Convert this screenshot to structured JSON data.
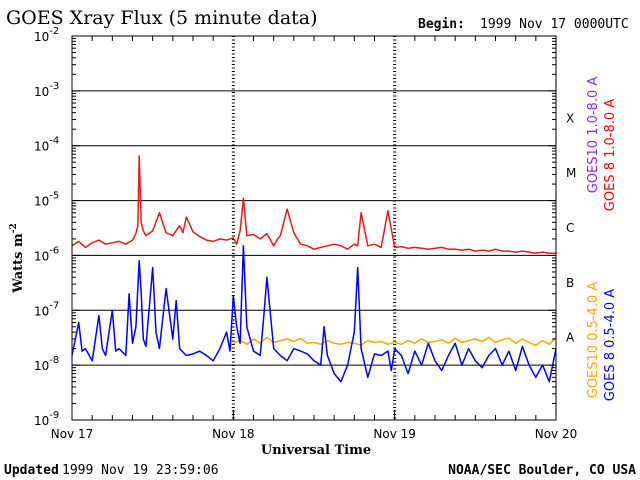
{
  "header": {
    "title": "GOES Xray Flux (5 minute data)",
    "begin_label": "Begin:",
    "begin_value": "1999 Nov 17 0000UTC"
  },
  "footer": {
    "updated_label": "Updated",
    "updated_value": "1999 Nov 19 23:59:06",
    "credit": "NOAA/SEC Boulder, CO USA"
  },
  "chart_data": {
    "type": "line",
    "title": "GOES Xray Flux (5 minute data)",
    "xlabel": "Universal Time",
    "ylabel": "Watts m",
    "ylabel_sup": "-2",
    "yscale": "log",
    "ylim": [
      1e-09,
      0.01
    ],
    "xlim": [
      0,
      72
    ],
    "x_unit": "hours since 1999 Nov 17 00:00 UTC",
    "x_ticks": [
      {
        "x": 0,
        "label": "Nov 17"
      },
      {
        "x": 24,
        "label": "Nov 18"
      },
      {
        "x": 48,
        "label": "Nov 19"
      },
      {
        "x": 72,
        "label": "Nov 20"
      }
    ],
    "y_ticks": [
      {
        "exp": -2,
        "base": "10",
        "sup": "-2"
      },
      {
        "exp": -3,
        "base": "10",
        "sup": "-3"
      },
      {
        "exp": -4,
        "base": "10",
        "sup": "-4"
      },
      {
        "exp": -5,
        "base": "10",
        "sup": "-5"
      },
      {
        "exp": -6,
        "base": "10",
        "sup": "-6"
      },
      {
        "exp": -7,
        "base": "10",
        "sup": "-7"
      },
      {
        "exp": -8,
        "base": "10",
        "sup": "-8"
      },
      {
        "exp": -9,
        "base": "10",
        "sup": "-9"
      }
    ],
    "flare_classes": [
      {
        "label": "X",
        "exp": -3.5
      },
      {
        "label": "M",
        "exp": -4.5
      },
      {
        "label": "C",
        "exp": -5.5
      },
      {
        "label": "B",
        "exp": -6.5
      },
      {
        "label": "A",
        "exp": -7.5
      }
    ],
    "gridlines_exp": [
      -3,
      -4,
      -5,
      -6,
      -7,
      -8
    ],
    "legend": [
      {
        "label": "GOES10 1.0-8.0 A",
        "color": "#8a2be2"
      },
      {
        "label": "GOES 8 1.0-8.0 A",
        "color": "#ff0000"
      },
      {
        "label": "GOES10 0.5-4.0 A",
        "color": "#ffa500"
      },
      {
        "label": "GOES 8 0.5-4.0 A",
        "color": "#0000ff"
      }
    ],
    "series": [
      {
        "name": "GOES 8 1.0-8.0 A",
        "color": "#e41a1c",
        "x": [
          0,
          1,
          2,
          3,
          4,
          5,
          6,
          7,
          8,
          9,
          9.5,
          9.8,
          10,
          10.3,
          10.6,
          11,
          12,
          13,
          14,
          15,
          16,
          16.5,
          17,
          18,
          19,
          20,
          21,
          22,
          23,
          24,
          24.5,
          25,
          25.5,
          26,
          27,
          28,
          29,
          30,
          30.5,
          31,
          32,
          33,
          34,
          35,
          36,
          37,
          38,
          39,
          40,
          41,
          42,
          42.5,
          43,
          44,
          45,
          46,
          47,
          48,
          49,
          50,
          51,
          52,
          53,
          54,
          55,
          56,
          57,
          58,
          59,
          60,
          61,
          62,
          63,
          64,
          65,
          66,
          67,
          68,
          69,
          70,
          71,
          72
        ],
        "y": [
          1.5e-06,
          1.8e-06,
          1.4e-06,
          1.7e-06,
          1.9e-06,
          1.6e-06,
          1.7e-06,
          1.8e-06,
          1.6e-06,
          1.9e-06,
          2.5e-06,
          3.5e-06,
          6.5e-05,
          4e-06,
          2.8e-06,
          2.3e-06,
          2.8e-06,
          6e-06,
          2.6e-06,
          2.3e-06,
          3.5e-06,
          2.6e-06,
          5e-06,
          2.7e-06,
          2.2e-06,
          1.9e-06,
          1.8e-06,
          2e-06,
          1.9e-06,
          2.1e-06,
          1.6e-06,
          2.8e-06,
          1.1e-05,
          2.3e-06,
          2.4e-06,
          2e-06,
          2.5e-06,
          1.5e-06,
          1.9e-06,
          2.3e-06,
          7e-06,
          2.6e-06,
          1.6e-06,
          1.5e-06,
          1.3e-06,
          1.4e-06,
          1.5e-06,
          1.6e-06,
          1.5e-06,
          1.3e-06,
          1.6e-06,
          1.5e-06,
          6e-06,
          1.5e-06,
          1.6e-06,
          1.4e-06,
          6.5e-06,
          1.4e-06,
          1.45e-06,
          1.35e-06,
          1.4e-06,
          1.35e-06,
          1.3e-06,
          1.35e-06,
          1.4e-06,
          1.3e-06,
          1.3e-06,
          1.25e-06,
          1.3e-06,
          1.2e-06,
          1.25e-06,
          1.2e-06,
          1.3e-06,
          1.2e-06,
          1.2e-06,
          1.15e-06,
          1.2e-06,
          1.15e-06,
          1.1e-06,
          1.15e-06,
          1.1e-06,
          1.1e-06
        ]
      },
      {
        "name": "GOES 8 0.5-4.0 A",
        "color": "#0000ff",
        "x": [
          0,
          1,
          1.5,
          2,
          3,
          4,
          4.5,
          5,
          6,
          6.5,
          7,
          8,
          8.5,
          9,
          9.5,
          10,
          10.3,
          10.6,
          11,
          12,
          12.5,
          13,
          14,
          15,
          15.5,
          16,
          17,
          18,
          19,
          20,
          21,
          22,
          23,
          23.5,
          24,
          24.5,
          25,
          25.5,
          26,
          27,
          28,
          28.5,
          29,
          30,
          31,
          32,
          33,
          34,
          35,
          36,
          37,
          37.5,
          38,
          39,
          40,
          41,
          42,
          42.5,
          43,
          44,
          45,
          46,
          47,
          47.5,
          48,
          49,
          50,
          51,
          52,
          53,
          54,
          55,
          56,
          57,
          58,
          59,
          60,
          61,
          62,
          63,
          64,
          65,
          66,
          67,
          68,
          69,
          70,
          71,
          72
        ],
        "y": [
          1.5e-08,
          6e-08,
          1.8e-08,
          2e-08,
          1.2e-08,
          8e-08,
          2e-08,
          1.5e-08,
          1e-07,
          1.8e-08,
          2e-08,
          1.5e-08,
          2e-07,
          2.5e-08,
          5e-08,
          8e-07,
          2e-07,
          3e-08,
          2.2e-08,
          6e-07,
          4e-08,
          2e-08,
          2.5e-07,
          3e-08,
          1.5e-07,
          2e-08,
          1.5e-08,
          1.6e-08,
          1.8e-08,
          1.5e-08,
          1.2e-08,
          2e-08,
          4e-08,
          1.8e-08,
          1.8e-07,
          5e-08,
          2.5e-08,
          1.5e-06,
          5e-08,
          1.8e-08,
          1.5e-08,
          7e-08,
          4e-07,
          2e-08,
          1.5e-08,
          1.2e-08,
          2e-08,
          1.8e-08,
          1.6e-08,
          1.2e-08,
          1e-08,
          5e-08,
          1.5e-08,
          7e-09,
          5e-09,
          1e-08,
          4e-08,
          6e-07,
          2e-08,
          6e-09,
          1.6e-08,
          1.5e-08,
          1.8e-08,
          8e-09,
          2e-08,
          1.5e-08,
          7e-09,
          1.8e-08,
          1e-08,
          2.5e-08,
          1.2e-08,
          8e-09,
          1.5e-08,
          2.5e-08,
          1e-08,
          2e-08,
          1.2e-08,
          9e-09,
          1.5e-08,
          2e-08,
          1e-08,
          1.8e-08,
          8e-09,
          2.2e-08,
          1e-08,
          6e-09,
          1e-08,
          5e-09,
          2e-08
        ]
      },
      {
        "name": "GOES10 0.5-4.0 A",
        "color": "#ffa500",
        "x": [
          24,
          25,
          26,
          27,
          28,
          29,
          30,
          31,
          32,
          33,
          34,
          35,
          36,
          37,
          38,
          39,
          40,
          41,
          42,
          43,
          44,
          45,
          46,
          47,
          48,
          49,
          50,
          51,
          52,
          53,
          54,
          55,
          56,
          57,
          58,
          59,
          60,
          61,
          62,
          63,
          64,
          65,
          66,
          67,
          68,
          69,
          70,
          71,
          72
        ],
        "y": [
          2.5e-08,
          2.8e-08,
          2.4e-08,
          3e-08,
          2.5e-08,
          3.2e-08,
          2.6e-08,
          2.8e-08,
          3e-08,
          2.7e-08,
          3.1e-08,
          2.5e-08,
          2.6e-08,
          2.4e-08,
          2.8e-08,
          2.5e-08,
          2.4e-08,
          2.6e-08,
          2.5e-08,
          2.3e-08,
          2.8e-08,
          2.6e-08,
          2.7e-08,
          2.4e-08,
          2.6e-08,
          2.4e-08,
          2.8e-08,
          2.5e-08,
          3e-08,
          2.6e-08,
          2.7e-08,
          2.9e-08,
          2.5e-08,
          3.1e-08,
          2.6e-08,
          2.8e-08,
          3e-08,
          2.7e-08,
          3.2e-08,
          2.6e-08,
          2.9e-08,
          3.1e-08,
          2.5e-08,
          3e-08,
          2.6e-08,
          2.3e-08,
          2.8e-08,
          2.4e-08,
          3.2e-08
        ]
      }
    ]
  }
}
